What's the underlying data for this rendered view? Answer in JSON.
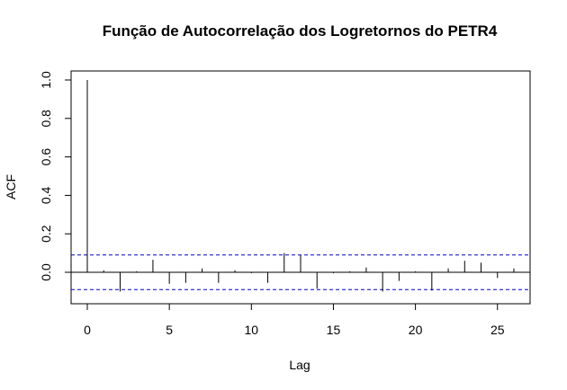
{
  "chart_data": {
    "type": "bar",
    "title": "Função de Autocorrelação dos Logretornos do PETR4",
    "xlabel": "Lag",
    "ylabel": "ACF",
    "xlim": [
      0,
      26.5
    ],
    "ylim": [
      -0.1,
      1.0
    ],
    "x_ticks": [
      "0",
      "5",
      "10",
      "15",
      "20",
      "25"
    ],
    "y_ticks": [
      "0.0",
      "0.2",
      "0.4",
      "0.6",
      "0.8",
      "1.0"
    ],
    "confidence_bound": 0.09,
    "confidence_line_color": "#0000cc",
    "grid": false,
    "lags": [
      0,
      1,
      2,
      3,
      4,
      5,
      6,
      7,
      8,
      9,
      10,
      11,
      12,
      13,
      14,
      15,
      16,
      17,
      18,
      19,
      20,
      21,
      22,
      23,
      24,
      25,
      26
    ],
    "values": [
      1.0,
      0.01,
      -0.1,
      0.005,
      0.065,
      -0.06,
      -0.055,
      0.02,
      -0.055,
      0.01,
      -0.005,
      -0.055,
      0.1,
      0.09,
      -0.085,
      -0.005,
      0.005,
      0.025,
      -0.1,
      -0.045,
      0.005,
      -0.095,
      0.02,
      0.06,
      0.05,
      -0.03,
      0.02
    ]
  }
}
